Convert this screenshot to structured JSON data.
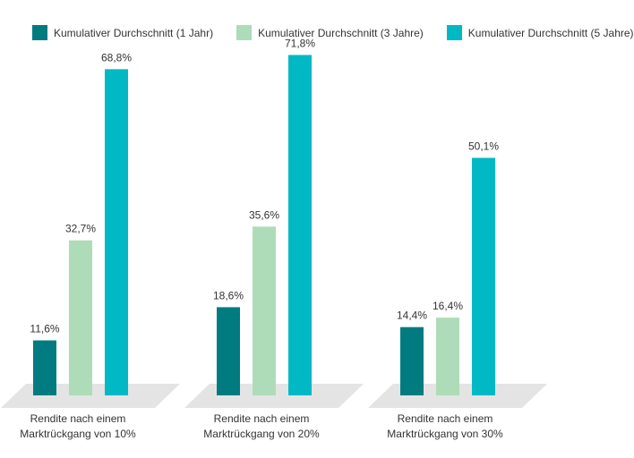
{
  "chart_data": {
    "type": "bar",
    "title": "",
    "xlabel": "",
    "ylabel": "",
    "ylim": [
      0,
      80
    ],
    "grid": false,
    "legend_position": "top",
    "categories": [
      [
        "Rendite nach einem",
        "Marktrückgang von 10%"
      ],
      [
        "Rendite nach einem",
        "Marktrückgang von 20%"
      ],
      [
        "Rendite nach einem",
        "Marktrückgang von 30%"
      ]
    ],
    "series": [
      {
        "name": "Kumulativer Durchschnitt (1 Jahr)",
        "color": "#007c80",
        "values": [
          11.6,
          18.6,
          14.4
        ],
        "labels": [
          "11,6%",
          "18,6%",
          "14,4%"
        ]
      },
      {
        "name": "Kumulativer Durchschnitt (3 Jahre)",
        "color": "#aedcb8",
        "values": [
          32.7,
          35.6,
          16.4
        ],
        "labels": [
          "32,7%",
          "35,6%",
          "16,4%"
        ]
      },
      {
        "name": "Kumulativer Durchschnitt (5 Jahre)",
        "color": "#00b9c4",
        "values": [
          68.8,
          71.8,
          50.1
        ],
        "labels": [
          "68,8%",
          "71,8%",
          "50,1%"
        ]
      }
    ],
    "floor_color": "#e4e4e4"
  }
}
